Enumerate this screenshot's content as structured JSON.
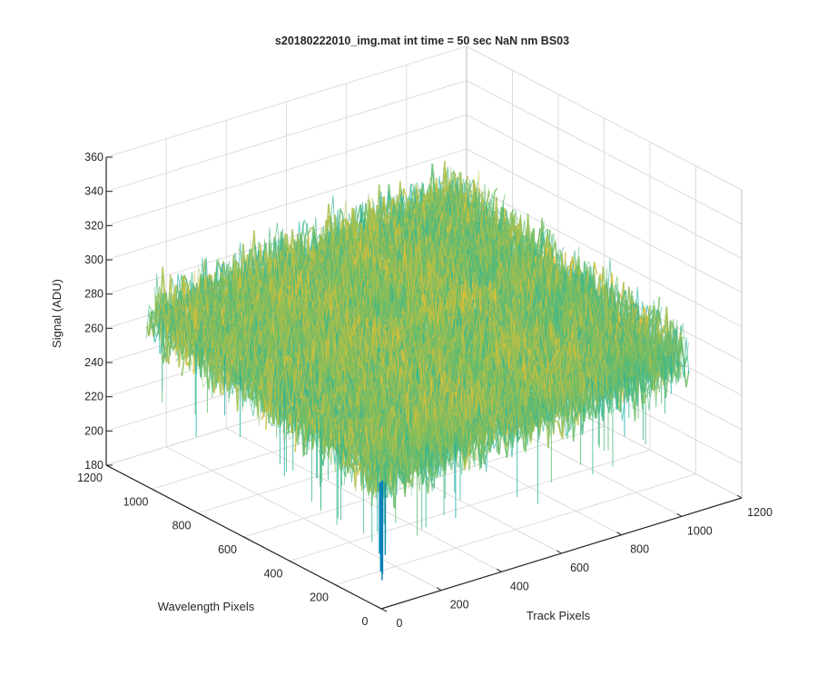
{
  "chart_data": {
    "type": "surface",
    "title": "s20180222010_img.mat int time = 50 sec  NaN nm BS03",
    "xlabel": "Track Pixels",
    "ylabel": "Wavelength Pixels",
    "zlabel": "Signal (ADU)",
    "xlim": [
      0,
      1200
    ],
    "ylim": [
      0,
      1200
    ],
    "zlim": [
      180,
      360
    ],
    "xticks": [
      0,
      200,
      400,
      600,
      800,
      1000,
      1200
    ],
    "yticks": [
      0,
      200,
      400,
      600,
      800,
      1000,
      1200
    ],
    "zticks": [
      180,
      200,
      220,
      240,
      260,
      280,
      300,
      320,
      340,
      360
    ],
    "grid": true,
    "colormap": "parula",
    "data_extent": {
      "x": [
        0,
        1024
      ],
      "y": [
        0,
        1024
      ]
    },
    "surface": {
      "mean_signal": 281,
      "noise_range": [
        225,
        345
      ],
      "corner_levels": {
        "x0_y0": 258,
        "x1024_y0": 272,
        "x0_y1024": 280,
        "x1024_y1024": 296
      },
      "dip": {
        "x": 30,
        "y": 40,
        "min_signal": 185
      }
    },
    "colors": {
      "low": "#0072bd",
      "mid": "#20b5a3",
      "high": "#f0c030",
      "axis": "#262626",
      "grid": "#dcdcdc"
    }
  }
}
